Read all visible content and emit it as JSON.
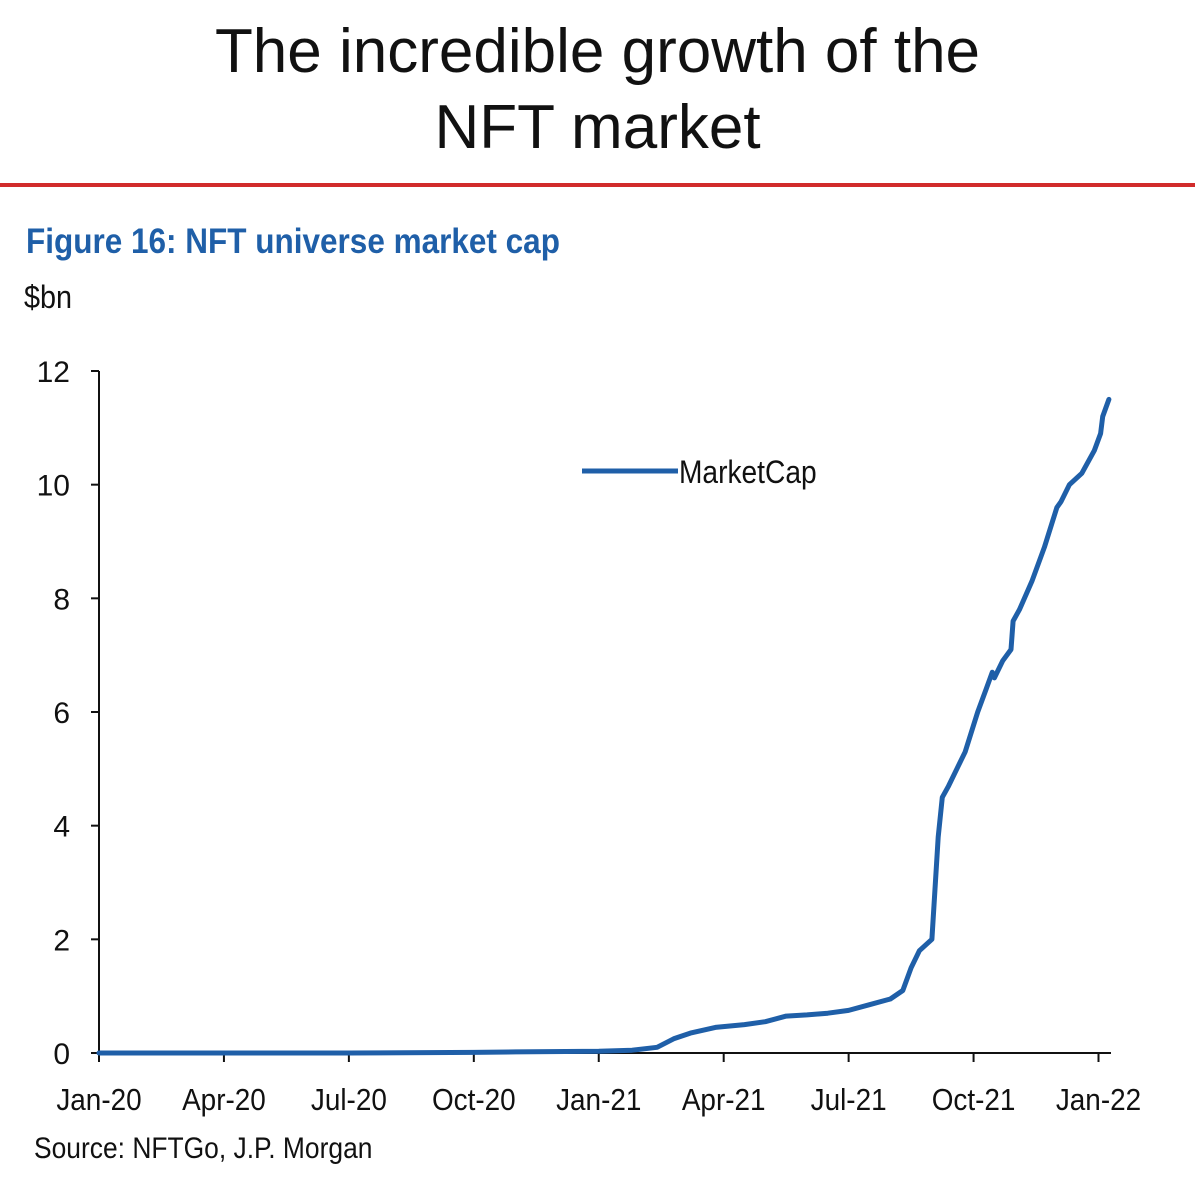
{
  "headline": {
    "line1": "The incredible growth of the",
    "line2": "NFT market"
  },
  "colors": {
    "rule": "#D12B2B",
    "figure_title": "#1F5FA8",
    "series": "#1F5FA8",
    "axis": "#111111"
  },
  "chart_data": {
    "type": "line",
    "figure_title": "Figure 16: NFT universe market cap",
    "ylabel": "$bn",
    "source": "Source: NFTGo, J.P. Morgan",
    "ylim": [
      0,
      12
    ],
    "yticks": [
      0,
      2,
      4,
      6,
      8,
      10,
      12
    ],
    "xlim": [
      0,
      24.3
    ],
    "xticks": [
      {
        "label": "Jan-20",
        "value": 0
      },
      {
        "label": "Apr-20",
        "value": 3
      },
      {
        "label": "Jul-20",
        "value": 6
      },
      {
        "label": "Oct-20",
        "value": 9
      },
      {
        "label": "Jan-21",
        "value": 12
      },
      {
        "label": "Apr-21",
        "value": 15
      },
      {
        "label": "Jul-21",
        "value": 18
      },
      {
        "label": "Oct-21",
        "value": 21
      },
      {
        "label": "Jan-22",
        "value": 24
      }
    ],
    "legend": {
      "position": "top-center"
    },
    "series": [
      {
        "name": "MarketCap",
        "x": [
          0,
          3,
          6,
          9,
          10,
          12,
          12.8,
          13.4,
          13.8,
          14.2,
          14.8,
          15.5,
          16,
          16.5,
          17,
          17.5,
          18,
          18.5,
          19,
          19.3,
          19.5,
          19.7,
          20,
          20.15,
          20.25,
          20.4,
          20.6,
          20.8,
          21.1,
          21.3,
          21.45,
          21.5,
          21.7,
          21.9,
          21.95,
          22.1,
          22.4,
          22.7,
          23,
          23.1,
          23.3,
          23.6,
          23.9,
          24.05,
          24.1,
          24.25
        ],
        "y": [
          0.0,
          0.0,
          0.0,
          0.01,
          0.02,
          0.03,
          0.05,
          0.1,
          0.25,
          0.35,
          0.45,
          0.5,
          0.55,
          0.65,
          0.67,
          0.7,
          0.75,
          0.85,
          0.95,
          1.1,
          1.5,
          1.8,
          2.0,
          3.8,
          4.5,
          4.7,
          5.0,
          5.3,
          6.0,
          6.4,
          6.7,
          6.6,
          6.9,
          7.1,
          7.6,
          7.8,
          8.3,
          8.9,
          9.6,
          9.7,
          10.0,
          10.2,
          10.6,
          10.9,
          11.2,
          11.5
        ]
      }
    ]
  }
}
